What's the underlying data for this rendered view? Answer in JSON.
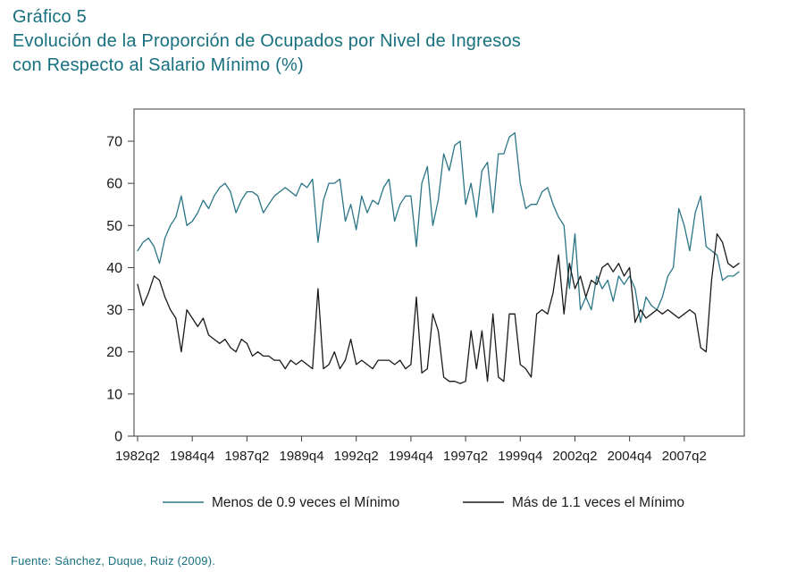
{
  "header": {
    "kicker": "Gráfico 5",
    "title_line1": "Evolución de la Proporción de Ocupados por Nivel de Ingresos",
    "title_line2": "con Respecto al Salario Mínimo (%)"
  },
  "footer": {
    "source": "Fuente: Sánchez, Duque, Ruiz (2009)."
  },
  "colors": {
    "accent": "#17707f",
    "axis": "#3a3a3a",
    "tick_text": "#1a1a1a",
    "series_menos": "#2a7586",
    "series_mas": "#1a1a1a"
  },
  "chart_data": {
    "type": "line",
    "title": "Evolución de la Proporción de Ocupados por Nivel de Ingresos con Respecto al Salario Mínimo (%)",
    "x_frequency": "quarterly",
    "grid": false,
    "legend_position": "bottom",
    "ylim": [
      0,
      70
    ],
    "yticks": [
      0,
      10,
      20,
      30,
      40,
      50,
      60,
      70
    ],
    "xticks": {
      "indices": [
        0,
        10,
        20,
        30,
        40,
        50,
        60,
        70,
        80,
        90,
        100
      ],
      "labels": [
        "1982q2",
        "1984q4",
        "1987q2",
        "1989q4",
        "1992q2",
        "1994q4",
        "1997q2",
        "1999q4",
        "2002q2",
        "2004q4",
        "2007q2"
      ]
    },
    "x": [
      "1982q2",
      "1982q3",
      "1982q4",
      "1983q1",
      "1983q2",
      "1983q3",
      "1983q4",
      "1984q1",
      "1984q2",
      "1984q3",
      "1984q4",
      "1985q1",
      "1985q2",
      "1985q3",
      "1985q4",
      "1986q1",
      "1986q2",
      "1986q3",
      "1986q4",
      "1987q1",
      "1987q2",
      "1987q3",
      "1987q4",
      "1988q1",
      "1988q2",
      "1988q3",
      "1988q4",
      "1989q1",
      "1989q2",
      "1989q3",
      "1989q4",
      "1990q1",
      "1990q2",
      "1990q3",
      "1990q4",
      "1991q1",
      "1991q2",
      "1991q3",
      "1991q4",
      "1992q1",
      "1992q2",
      "1992q3",
      "1992q4",
      "1993q1",
      "1993q2",
      "1993q3",
      "1993q4",
      "1994q1",
      "1994q2",
      "1994q3",
      "1994q4",
      "1995q1",
      "1995q2",
      "1995q3",
      "1995q4",
      "1996q1",
      "1996q2",
      "1996q3",
      "1996q4",
      "1997q1",
      "1997q2",
      "1997q3",
      "1997q4",
      "1998q1",
      "1998q2",
      "1998q3",
      "1998q4",
      "1999q1",
      "1999q2",
      "1999q3",
      "1999q4",
      "2000q1",
      "2000q2",
      "2000q3",
      "2000q4",
      "2001q1",
      "2001q2",
      "2001q3",
      "2001q4",
      "2002q1",
      "2002q2",
      "2002q3",
      "2002q4",
      "2003q1",
      "2003q2",
      "2003q3",
      "2003q4",
      "2004q1",
      "2004q2",
      "2004q3",
      "2004q4",
      "2005q1",
      "2005q2",
      "2005q3",
      "2005q4",
      "2006q1",
      "2006q2",
      "2006q3",
      "2006q4",
      "2007q1",
      "2007q2",
      "2007q3",
      "2007q4",
      "2008q1",
      "2008q2",
      "2008q3",
      "2008q4",
      "2009q1",
      "2009q2",
      "2009q3",
      "2009q4"
    ],
    "series": [
      {
        "name": "Menos de 0.9 veces el Mínimo",
        "color": "#2a7586",
        "values": [
          44,
          46,
          47,
          45,
          41,
          47,
          50,
          52,
          57,
          50,
          51,
          53,
          56,
          54,
          57,
          59,
          60,
          58,
          53,
          56,
          58,
          58,
          57,
          53,
          55,
          57,
          58,
          59,
          58,
          57,
          60,
          59,
          61,
          46,
          56,
          60,
          60,
          61,
          51,
          55,
          49,
          57,
          53,
          56,
          55,
          59,
          61,
          51,
          55,
          57,
          57,
          45,
          60,
          64,
          50,
          56,
          67,
          63,
          69,
          70,
          55,
          60,
          52,
          63,
          65,
          53,
          67,
          67,
          71,
          72,
          60,
          54,
          55,
          55,
          58,
          59,
          55,
          52,
          50,
          35,
          48,
          30,
          33,
          30,
          38,
          35,
          37,
          32,
          38,
          36,
          38,
          35,
          27,
          33,
          31,
          30,
          33,
          38,
          40,
          54,
          50,
          44,
          53,
          57,
          45,
          44,
          43,
          37,
          38,
          38,
          39
        ]
      },
      {
        "name": "Más de 1.1 veces el Mínimo",
        "color": "#1a1a1a",
        "values": [
          36,
          31,
          34,
          38,
          37,
          33,
          30,
          28,
          20,
          30,
          28,
          26,
          28,
          24,
          23,
          22,
          23,
          21,
          20,
          23,
          22,
          19,
          20,
          19,
          19,
          18,
          18,
          16,
          18,
          17,
          18,
          17,
          16,
          35,
          16,
          17,
          20,
          16,
          18,
          23,
          17,
          18,
          17,
          16,
          18,
          18,
          18,
          17,
          18,
          16,
          17,
          33,
          15,
          16,
          29,
          25,
          14,
          13,
          13,
          12.5,
          13,
          25,
          16,
          25,
          13,
          29,
          14,
          13,
          29,
          29,
          17,
          16,
          14,
          29,
          30,
          29,
          34,
          43,
          29,
          41,
          35,
          38,
          33,
          37,
          36,
          40,
          41,
          39,
          41,
          38,
          40,
          27,
          30,
          28,
          29,
          30,
          29,
          30,
          29,
          28,
          29,
          30,
          29,
          21,
          20,
          37,
          48,
          46,
          41,
          40,
          41
        ]
      }
    ]
  }
}
